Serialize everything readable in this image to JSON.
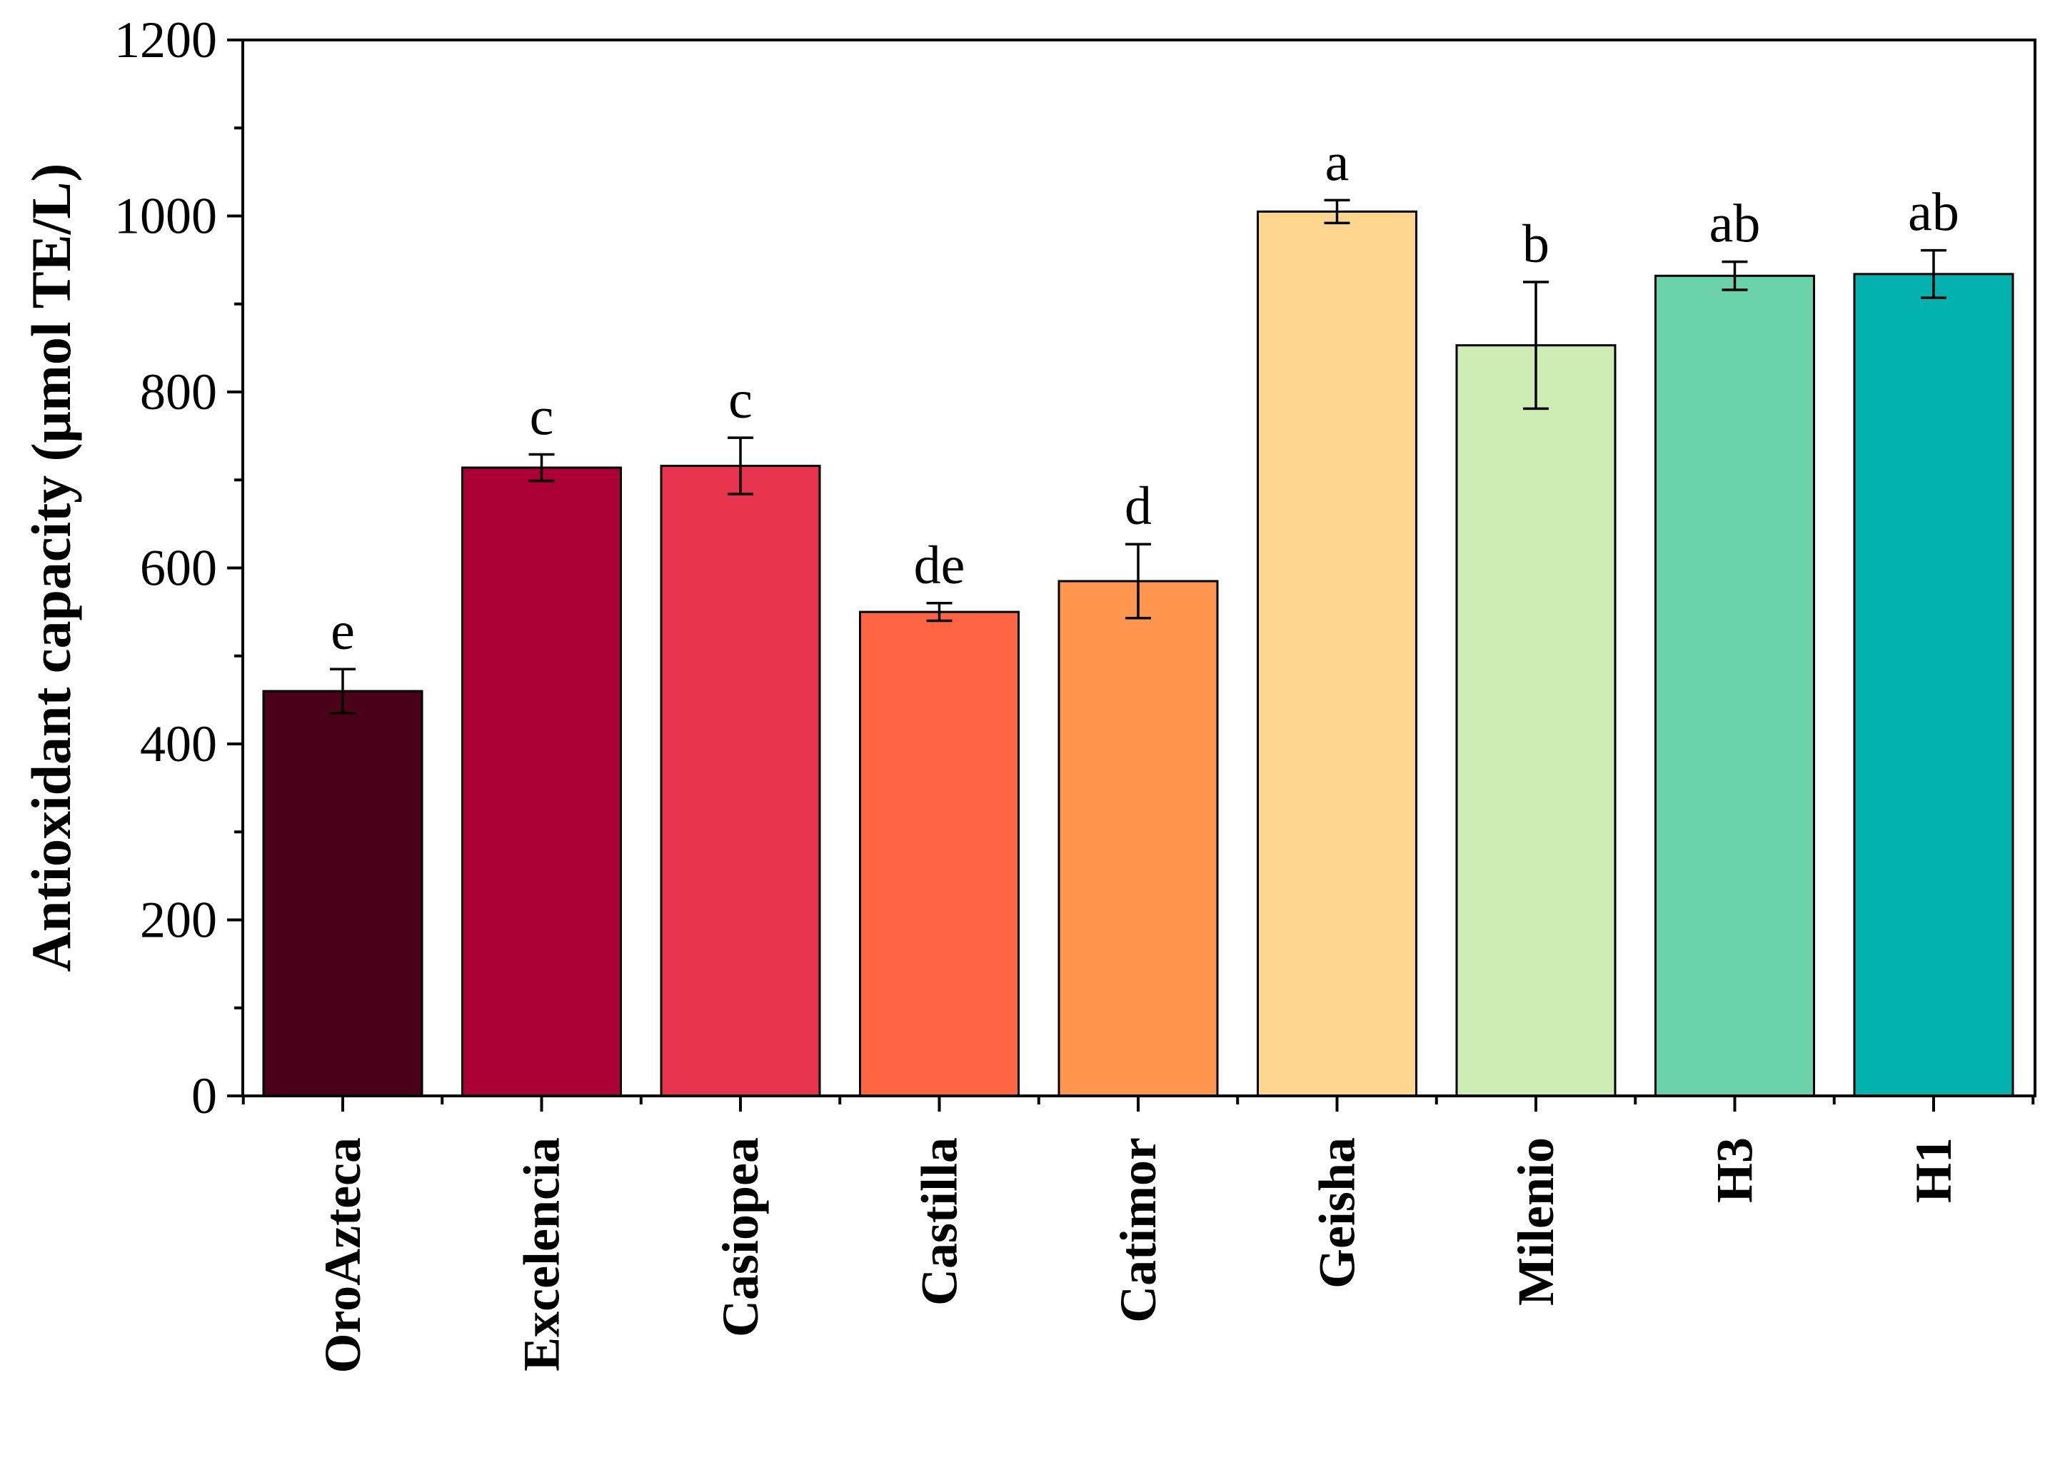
{
  "chart_data": {
    "type": "bar",
    "ylabel": "Antioxidant capacity (μmol TE/L)",
    "xlabel": "",
    "ylim": [
      0,
      1200
    ],
    "yticks": [
      0,
      200,
      400,
      600,
      800,
      1000,
      1200
    ],
    "grid": false,
    "categories": [
      "OroAzteca",
      "Excelencia",
      "Casiopea",
      "Castilla",
      "Catimor",
      "Geisha",
      "Milenio",
      "H3",
      "H1"
    ],
    "values": [
      460,
      714,
      716,
      550,
      585,
      1005,
      853,
      932,
      934
    ],
    "errors": [
      25,
      15,
      32,
      10,
      42,
      13,
      72,
      16,
      27
    ],
    "significance": [
      "e",
      "c",
      "c",
      "de",
      "d",
      "a",
      "b",
      "ab",
      "ab"
    ],
    "colors": [
      "#4a0018",
      "#ab0037",
      "#e8334d",
      "#ff6543",
      "#ff9650",
      "#ffd68e",
      "#cdedb5",
      "#6ad1ab",
      "#02b2ae"
    ]
  }
}
